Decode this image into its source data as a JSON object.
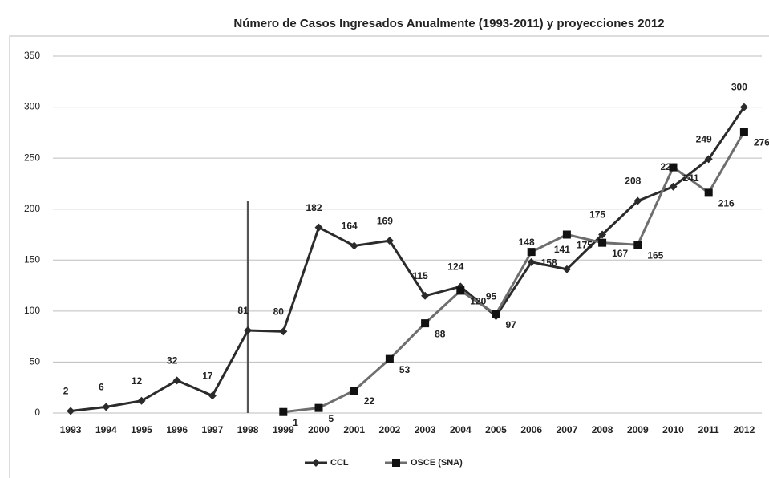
{
  "chart_data": {
    "type": "line",
    "title": "Número de Casos Ingresados Anualmente (1993-2011) y proyecciones 2012",
    "categories": [
      "1993",
      "1994",
      "1995",
      "1996",
      "1997",
      "1998",
      "1999",
      "2000",
      "2001",
      "2002",
      "2003",
      "2004",
      "2005",
      "2006",
      "2007",
      "2008",
      "2009",
      "2010",
      "2011",
      "2012"
    ],
    "series": [
      {
        "name": "CCL",
        "color": "#2b2b2b",
        "marker": "diamond",
        "values": [
          2,
          6,
          12,
          32,
          17,
          81,
          80,
          182,
          164,
          169,
          115,
          124,
          95,
          148,
          141,
          175,
          208,
          222,
          249,
          300
        ]
      },
      {
        "name": "OSCE (SNA)",
        "color": "#6e6e6e",
        "marker": "square",
        "values": [
          null,
          null,
          null,
          null,
          null,
          null,
          1,
          5,
          22,
          53,
          88,
          120,
          97,
          158,
          175,
          167,
          165,
          241,
          216,
          276
        ]
      }
    ],
    "ylim": [
      0,
      350
    ],
    "yticks": [
      0,
      50,
      100,
      150,
      200,
      250,
      300,
      350
    ],
    "grid": true,
    "reference_category": "1998",
    "legend": "bottom"
  }
}
